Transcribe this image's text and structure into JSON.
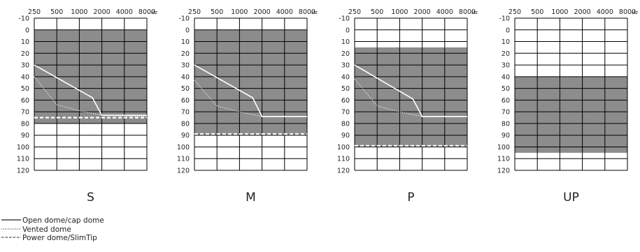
{
  "chart_data": [
    {
      "type": "line",
      "title": "S",
      "x_ticks": [
        "250",
        "500",
        "1000",
        "2000",
        "4000",
        "8000"
      ],
      "x_unit": "Hz",
      "y_ticks": [
        -10,
        0,
        10,
        20,
        30,
        40,
        50,
        60,
        70,
        80,
        90,
        100,
        110,
        120
      ],
      "ylim": [
        -10,
        120
      ],
      "y_inverted": true,
      "fitting_range": {
        "top": 0,
        "bottom": 80
      },
      "series": [
        {
          "name": "Open dome/cap dome",
          "style": "solid",
          "points": [
            [
              250,
              30
            ],
            [
              1500,
              58
            ],
            [
              2000,
              73
            ],
            [
              8000,
              73
            ]
          ]
        },
        {
          "name": "Vented dome",
          "style": "dotted",
          "points": [
            [
              250,
              40
            ],
            [
              500,
              64
            ],
            [
              1000,
              69
            ],
            [
              2000,
              73
            ],
            [
              8000,
              74
            ]
          ]
        },
        {
          "name": "Power dome/SlimTip",
          "style": "dashed",
          "points": [
            [
              250,
              75
            ],
            [
              8000,
              75
            ]
          ]
        }
      ]
    },
    {
      "type": "line",
      "title": "M",
      "x_ticks": [
        "250",
        "500",
        "1000",
        "2000",
        "4000",
        "8000"
      ],
      "x_unit": "Hz",
      "y_ticks": [
        -10,
        0,
        10,
        20,
        30,
        40,
        50,
        60,
        70,
        80,
        90,
        100,
        110,
        120
      ],
      "ylim": [
        -10,
        120
      ],
      "y_inverted": true,
      "fitting_range": {
        "top": 0,
        "bottom": 90
      },
      "series": [
        {
          "name": "Open dome/cap dome",
          "style": "solid",
          "points": [
            [
              250,
              30
            ],
            [
              1500,
              58
            ],
            [
              2000,
              74
            ],
            [
              8000,
              74
            ]
          ]
        },
        {
          "name": "Vented dome",
          "style": "dotted",
          "points": [
            [
              250,
              43
            ],
            [
              500,
              65
            ],
            [
              1000,
              70
            ],
            [
              2000,
              74
            ],
            [
              8000,
              74
            ]
          ]
        },
        {
          "name": "Power dome/SlimTip",
          "style": "dashed",
          "points": [
            [
              250,
              89
            ],
            [
              8000,
              89
            ]
          ]
        }
      ]
    },
    {
      "type": "line",
      "title": "P",
      "x_ticks": [
        "250",
        "500",
        "1000",
        "2000",
        "4000",
        "8000"
      ],
      "x_unit": "Hz",
      "y_ticks": [
        -10,
        0,
        10,
        20,
        30,
        40,
        50,
        60,
        70,
        80,
        90,
        100,
        110,
        120
      ],
      "ylim": [
        -10,
        120
      ],
      "y_inverted": true,
      "fitting_range": {
        "top": 15,
        "bottom": 100
      },
      "series": [
        {
          "name": "Open dome/cap dome",
          "style": "solid",
          "points": [
            [
              250,
              30
            ],
            [
              1500,
              59
            ],
            [
              2000,
              74
            ],
            [
              8000,
              74
            ]
          ]
        },
        {
          "name": "Vented dome",
          "style": "dotted",
          "points": [
            [
              250,
              42
            ],
            [
              500,
              65
            ],
            [
              1000,
              70
            ],
            [
              2000,
              74
            ],
            [
              8000,
              74
            ]
          ]
        },
        {
          "name": "Power dome/SlimTip",
          "style": "dashed",
          "points": [
            [
              250,
              99
            ],
            [
              8000,
              99
            ]
          ]
        }
      ]
    },
    {
      "type": "line",
      "title": "UP",
      "x_ticks": [
        "250",
        "500",
        "1000",
        "2000",
        "4000",
        "8000"
      ],
      "x_unit": "Hz",
      "y_ticks": [
        -10,
        0,
        10,
        20,
        30,
        40,
        50,
        60,
        70,
        80,
        90,
        100,
        110,
        120
      ],
      "ylim": [
        -10,
        120
      ],
      "y_inverted": true,
      "fitting_range": {
        "top": 40,
        "bottom": 105
      },
      "series": []
    }
  ],
  "legend": [
    {
      "label": "Open dome/cap dome",
      "style": "solid"
    },
    {
      "label": "Vented dome",
      "style": "dotted"
    },
    {
      "label": "Power dome/SlimTip",
      "style": "dashed"
    }
  ],
  "colors": {
    "fitting_range": "#8c8c8c",
    "grid": "#000000",
    "curve": "#ffffff",
    "legend_line": "#222222"
  }
}
